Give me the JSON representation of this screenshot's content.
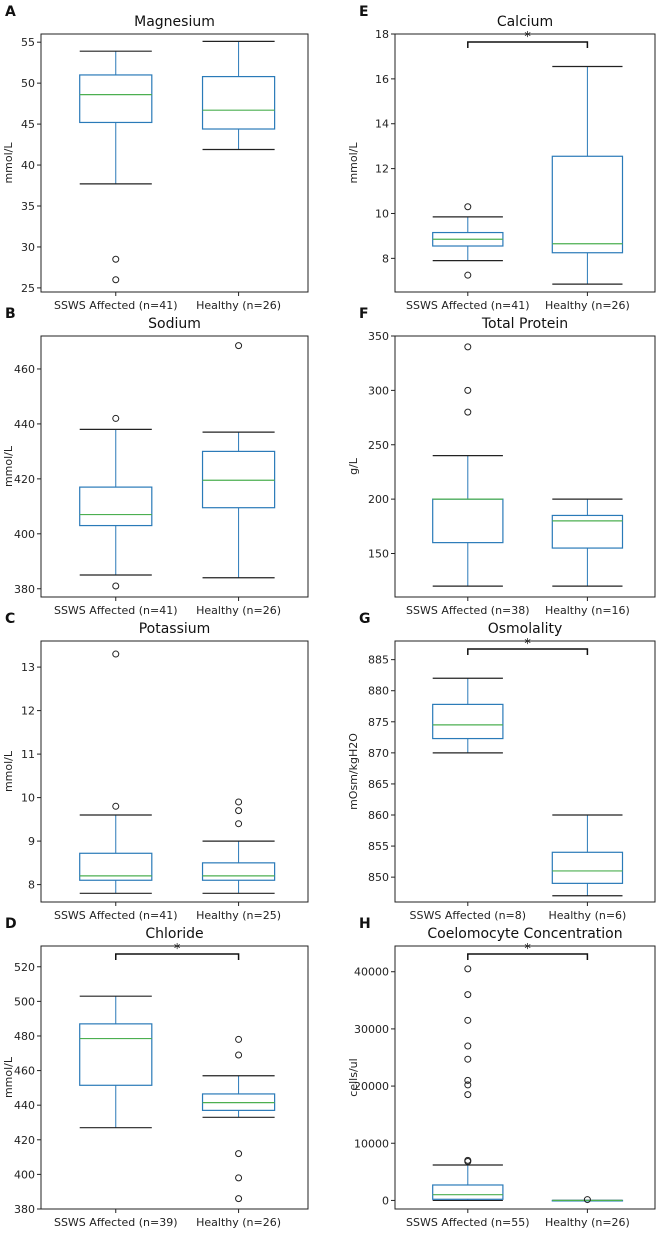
{
  "chart_data": [
    {
      "letter": "A",
      "type": "box",
      "title": "Magnesium",
      "ylabel": "mmol/L",
      "ylim": [
        24.5,
        56
      ],
      "yticks": [
        25,
        30,
        35,
        40,
        45,
        50,
        55
      ],
      "significance": null,
      "groups": [
        {
          "label": "SSWS Affected (n=41)",
          "whislo": 37.7,
          "q1": 45.2,
          "median": 48.6,
          "q3": 51.0,
          "whishi": 53.9,
          "fliers": [
            28.5,
            26.0
          ]
        },
        {
          "label": "Healthy (n=26)",
          "whislo": 41.9,
          "q1": 44.4,
          "median": 46.7,
          "q3": 50.8,
          "whishi": 55.1,
          "fliers": []
        }
      ]
    },
    {
      "letter": "E",
      "type": "box",
      "title": "Calcium",
      "ylabel": "mmol/L",
      "ylim": [
        6.5,
        18
      ],
      "yticks": [
        8,
        10,
        12,
        14,
        16,
        18
      ],
      "significance": "*",
      "groups": [
        {
          "label": "SSWS Affected (n=41)",
          "whislo": 7.9,
          "q1": 8.55,
          "median": 8.85,
          "q3": 9.15,
          "whishi": 9.85,
          "fliers": [
            10.3,
            7.25
          ]
        },
        {
          "label": "Healthy (n=26)",
          "whislo": 6.85,
          "q1": 8.25,
          "median": 8.65,
          "q3": 12.55,
          "whishi": 16.55,
          "fliers": []
        }
      ]
    },
    {
      "letter": "B",
      "type": "box",
      "title": "Sodium",
      "ylabel": "mmol/L",
      "ylim": [
        377,
        472
      ],
      "yticks": [
        380,
        400,
        420,
        440,
        460
      ],
      "significance": null,
      "groups": [
        {
          "label": "SSWS Affected (n=41)",
          "whislo": 385,
          "q1": 403,
          "median": 407,
          "q3": 417,
          "whishi": 438,
          "fliers": [
            442,
            381
          ]
        },
        {
          "label": "Healthy (n=26)",
          "whislo": 384,
          "q1": 409.5,
          "median": 419.5,
          "q3": 430,
          "whishi": 437,
          "fliers": [
            468.5
          ]
        }
      ]
    },
    {
      "letter": "F",
      "type": "box",
      "title": "Total Protein",
      "ylabel": "g/L",
      "ylim": [
        110,
        350
      ],
      "yticks": [
        150,
        200,
        250,
        300,
        350
      ],
      "significance": null,
      "groups": [
        {
          "label": "SSWS Affected (n=38)",
          "whislo": 120,
          "q1": 160,
          "median": 200,
          "q3": 200,
          "whishi": 240,
          "fliers": [
            340,
            300,
            280
          ]
        },
        {
          "label": "Healthy (n=16)",
          "whislo": 120,
          "q1": 155,
          "median": 180,
          "q3": 185,
          "whishi": 200,
          "fliers": []
        }
      ]
    },
    {
      "letter": "C",
      "type": "box",
      "title": "Potassium",
      "ylabel": "mmol/L",
      "ylim": [
        7.6,
        13.6
      ],
      "yticks": [
        8,
        9,
        10,
        11,
        12,
        13
      ],
      "significance": null,
      "groups": [
        {
          "label": "SSWS Affected (n=41)",
          "whislo": 7.8,
          "q1": 8.1,
          "median": 8.2,
          "q3": 8.72,
          "whishi": 9.6,
          "fliers": [
            13.3,
            9.8
          ]
        },
        {
          "label": "Healthy (n=25)",
          "whislo": 7.8,
          "q1": 8.1,
          "median": 8.2,
          "q3": 8.5,
          "whishi": 9.0,
          "fliers": [
            9.9,
            9.7,
            9.4
          ]
        }
      ]
    },
    {
      "letter": "G",
      "type": "box",
      "title": "Osmolality",
      "ylabel": "mOsm/kgH2O",
      "ylim": [
        846,
        888
      ],
      "yticks": [
        850,
        855,
        860,
        865,
        870,
        875,
        880,
        885
      ],
      "significance": "*",
      "groups": [
        {
          "label": "SSWS Affected (n=8)",
          "whislo": 870,
          "q1": 872.3,
          "median": 874.5,
          "q3": 877.8,
          "whishi": 882,
          "fliers": []
        },
        {
          "label": "Healthy (n=6)",
          "whislo": 847,
          "q1": 849,
          "median": 851,
          "q3": 854,
          "whishi": 860,
          "fliers": []
        }
      ]
    },
    {
      "letter": "D",
      "type": "box",
      "title": "Chloride",
      "ylabel": "mmol/L",
      "ylim": [
        380,
        532
      ],
      "yticks": [
        380,
        400,
        420,
        440,
        460,
        480,
        500,
        520
      ],
      "significance": "*",
      "groups": [
        {
          "label": "SSWS Affected (n=39)",
          "whislo": 427,
          "q1": 451.5,
          "median": 478.5,
          "q3": 487,
          "whishi": 503,
          "fliers": []
        },
        {
          "label": "Healthy (n=26)",
          "whislo": 433,
          "q1": 437,
          "median": 441.5,
          "q3": 446.5,
          "whishi": 457,
          "fliers": [
            478,
            469,
            412,
            398,
            386
          ]
        }
      ]
    },
    {
      "letter": "H",
      "type": "box",
      "title": "Coelomocyte Concentration",
      "ylabel": "cells/ul",
      "ylim": [
        -1500,
        44500
      ],
      "yticks": [
        0,
        10000,
        20000,
        30000,
        40000
      ],
      "significance": "*",
      "groups": [
        {
          "label": "SSWS Affected (n=55)",
          "whislo": 0,
          "q1": 200,
          "median": 1000,
          "q3": 2700,
          "whishi": 6200,
          "fliers": [
            40500,
            36000,
            31500,
            27000,
            24700,
            21000,
            20200,
            18500,
            7000,
            6800
          ]
        },
        {
          "label": "Healthy (n=26)",
          "whislo": 0,
          "q1": 0,
          "median": 0,
          "q3": 0,
          "whishi": 0,
          "fliers": [
            150
          ]
        }
      ]
    }
  ],
  "colors": {
    "box": "#2a7ab8",
    "median": "#4caf50",
    "whisker": "#222222",
    "frame": "#222222"
  }
}
